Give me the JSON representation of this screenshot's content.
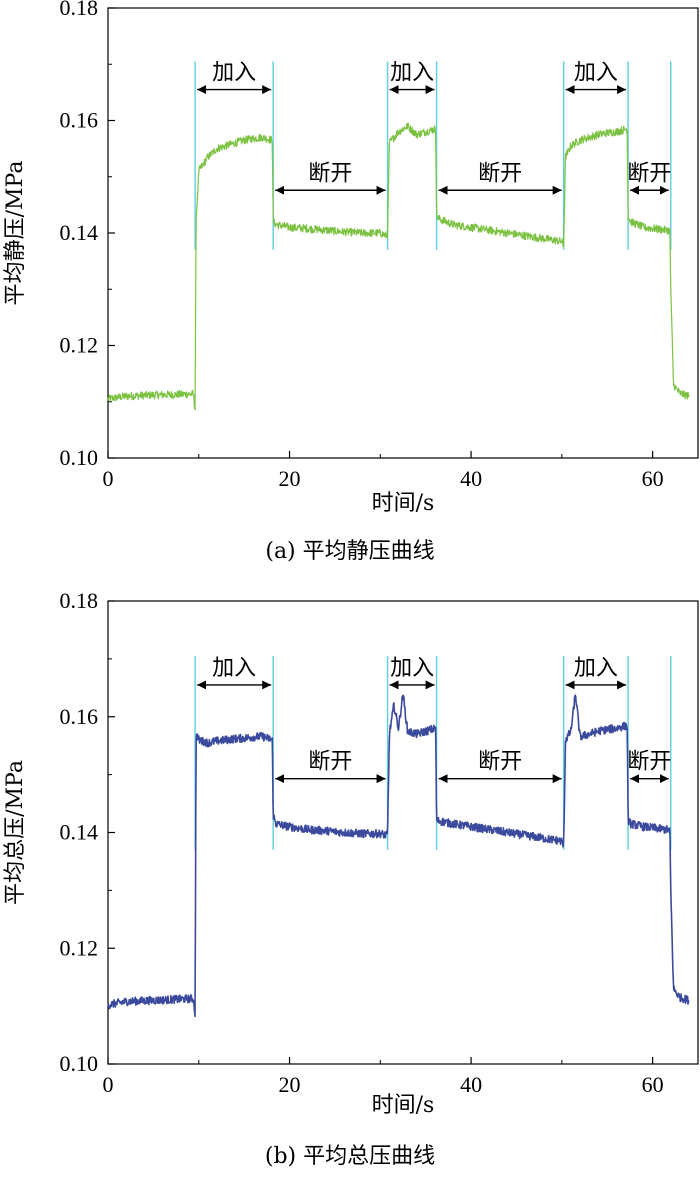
{
  "chart_data": [
    {
      "type": "line",
      "caption": "(a) 平均静压曲线",
      "xlabel": "时间/s",
      "ylabel": "平均静压/MPa",
      "xlim": [
        0,
        65
      ],
      "ylim": [
        0.1,
        0.18
      ],
      "x_ticks": [
        0,
        20,
        40,
        60
      ],
      "x_tick_labels": [
        "0",
        "20",
        "40",
        "60"
      ],
      "y_ticks": [
        0.1,
        0.12,
        0.14,
        0.16,
        0.18
      ],
      "y_tick_labels": [
        "0.10",
        "0.12",
        "0.14",
        "0.16",
        "0.18"
      ],
      "grid": false,
      "line_color": "#7cc242",
      "marker_color": "#5fcfe0",
      "markers": [
        9.6,
        18.2,
        30.8,
        36.2,
        50.2,
        57.3,
        62.0
      ],
      "annotations": [
        {
          "text": "加入",
          "from": 9.6,
          "to": 18.2,
          "y": 0.1655
        },
        {
          "text": "断开",
          "from": 18.2,
          "to": 30.8,
          "y": 0.1476
        },
        {
          "text": "加入",
          "from": 30.8,
          "to": 36.2,
          "y": 0.1655
        },
        {
          "text": "断开",
          "from": 36.2,
          "to": 50.2,
          "y": 0.1476
        },
        {
          "text": "加入",
          "from": 50.2,
          "to": 57.3,
          "y": 0.1655
        },
        {
          "text": "断开",
          "from": 57.3,
          "to": 62.0,
          "y": 0.1476
        }
      ],
      "series": [
        {
          "x": [
            0,
            2,
            5,
            8,
            9.4,
            9.6,
            9.7,
            10.0,
            11,
            12,
            13,
            14,
            15,
            16,
            17,
            18.1,
            18.2,
            18.5,
            20,
            22,
            24,
            26,
            28,
            30,
            30.7,
            30.8,
            31.0,
            32,
            33,
            34,
            35,
            36.1,
            36.2,
            36.5,
            38,
            40,
            42,
            44,
            46,
            48,
            50.0,
            50.2,
            50.4,
            51,
            52,
            53,
            54,
            55,
            56,
            57.2,
            57.3,
            57.6,
            59,
            61.5,
            61.9,
            62.0,
            62.3,
            63,
            64
          ],
          "y": [
            0.1105,
            0.111,
            0.1112,
            0.1113,
            0.1114,
            0.1085,
            0.142,
            0.151,
            0.1535,
            0.155,
            0.1555,
            0.156,
            0.1565,
            0.1568,
            0.157,
            0.1565,
            0.142,
            0.1415,
            0.141,
            0.1408,
            0.1405,
            0.1402,
            0.14,
            0.14,
            0.1395,
            0.1395,
            0.156,
            0.158,
            0.159,
            0.1575,
            0.158,
            0.1585,
            0.143,
            0.1425,
            0.1415,
            0.141,
            0.1405,
            0.14,
            0.1395,
            0.139,
            0.1385,
            0.1375,
            0.1535,
            0.1555,
            0.1565,
            0.157,
            0.1575,
            0.1578,
            0.158,
            0.1585,
            0.143,
            0.142,
            0.141,
            0.1405,
            0.1405,
            0.13,
            0.113,
            0.1115,
            0.111
          ]
        }
      ]
    },
    {
      "type": "line",
      "caption": "(b) 平均总压曲线",
      "xlabel": "时间/s",
      "ylabel": "平均总压/MPa",
      "xlim": [
        0,
        65
      ],
      "ylim": [
        0.1,
        0.18
      ],
      "x_ticks": [
        0,
        20,
        40,
        60
      ],
      "x_tick_labels": [
        "0",
        "20",
        "40",
        "60"
      ],
      "y_ticks": [
        0.1,
        0.12,
        0.14,
        0.16,
        0.18
      ],
      "y_tick_labels": [
        "0.10",
        "0.12",
        "0.14",
        "0.16",
        "0.18"
      ],
      "grid": false,
      "line_color": "#3b4a9c",
      "marker_color": "#5fcfe0",
      "markers": [
        9.6,
        18.2,
        30.8,
        36.2,
        50.2,
        57.3,
        62.0
      ],
      "annotations": [
        {
          "text": "加入",
          "from": 9.6,
          "to": 18.2,
          "y": 0.1655
        },
        {
          "text": "断开",
          "from": 18.2,
          "to": 30.8,
          "y": 0.1493
        },
        {
          "text": "加入",
          "from": 30.8,
          "to": 36.2,
          "y": 0.1655
        },
        {
          "text": "断开",
          "from": 36.2,
          "to": 50.2,
          "y": 0.1493
        },
        {
          "text": "加入",
          "from": 50.2,
          "to": 57.3,
          "y": 0.1655
        },
        {
          "text": "断开",
          "from": 57.3,
          "to": 62.0,
          "y": 0.1493
        }
      ],
      "series": [
        {
          "x": [
            0,
            2,
            5,
            8,
            9.4,
            9.6,
            9.7,
            10.0,
            11,
            12,
            13,
            14,
            15,
            16,
            17,
            18.1,
            18.2,
            18.5,
            20,
            22,
            24,
            26,
            28,
            30,
            30.7,
            30.8,
            31.0,
            31.5,
            32,
            32.5,
            33,
            34,
            35,
            36.1,
            36.2,
            36.5,
            38,
            40,
            42,
            44,
            46,
            48,
            50.0,
            50.2,
            50.4,
            51,
            51.5,
            52,
            53,
            54,
            55,
            56,
            57.2,
            57.3,
            57.6,
            59,
            61.5,
            61.9,
            62.0,
            62.3,
            63,
            64
          ],
          "y": [
            0.1102,
            0.1108,
            0.111,
            0.1112,
            0.1113,
            0.1085,
            0.157,
            0.156,
            0.1555,
            0.1558,
            0.156,
            0.1562,
            0.1563,
            0.1565,
            0.1566,
            0.156,
            0.143,
            0.1415,
            0.141,
            0.1405,
            0.1403,
            0.14,
            0.1398,
            0.1398,
            0.1395,
            0.1395,
            0.157,
            0.162,
            0.158,
            0.164,
            0.1575,
            0.157,
            0.1575,
            0.158,
            0.142,
            0.142,
            0.1415,
            0.141,
            0.1405,
            0.14,
            0.1395,
            0.139,
            0.1385,
            0.1375,
            0.156,
            0.1575,
            0.164,
            0.1565,
            0.157,
            0.1575,
            0.1578,
            0.158,
            0.1585,
            0.142,
            0.1415,
            0.141,
            0.1405,
            0.1405,
            0.13,
            0.113,
            0.1115,
            0.111
          ]
        }
      ]
    }
  ]
}
